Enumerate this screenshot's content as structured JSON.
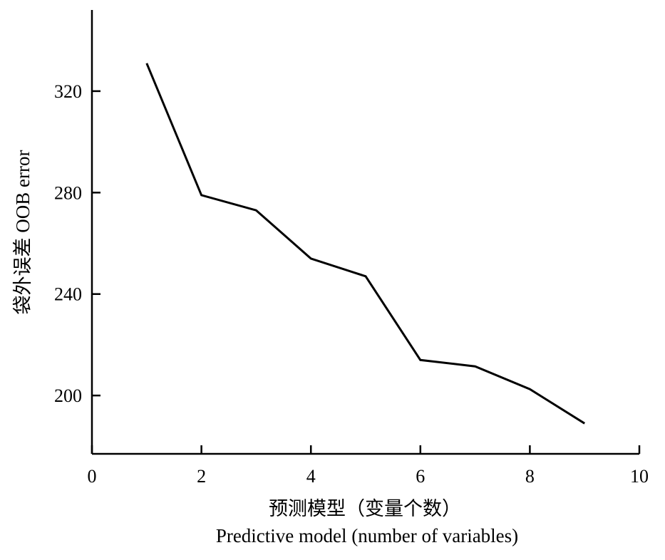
{
  "chart_data": {
    "type": "line",
    "xlabel_cn": "预测模型（变量个数）",
    "xlabel_en": "Predictive model (number of variables)",
    "ylabel": "袋外误差 OOB error",
    "xlim": [
      0,
      10
    ],
    "ylim": [
      177,
      352
    ],
    "x_ticks": [
      0,
      2,
      4,
      6,
      8,
      10
    ],
    "y_ticks": [
      200,
      240,
      280,
      320
    ],
    "grid": false,
    "series": [
      {
        "x": [
          1,
          2,
          3,
          4,
          5,
          6,
          7,
          8,
          9
        ],
        "y": [
          331,
          279,
          273,
          254,
          247,
          214,
          211.5,
          202.5,
          189
        ]
      }
    ]
  }
}
